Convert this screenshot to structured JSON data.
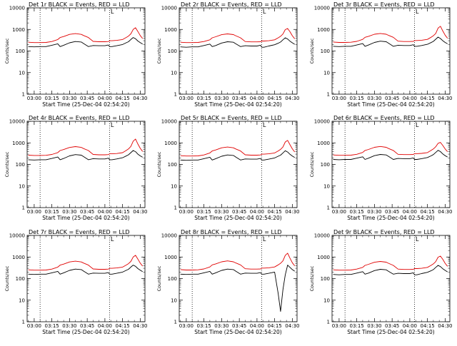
{
  "panels": [
    {
      "title": "Det 1r BLACK = Events, RED = LLD",
      "xlabel": "Start Time (25-Dec-04 02:54:20)",
      "ylabel": "Counts/sec"
    },
    {
      "title": "Det 2r BLACK = Events, RED = LLD",
      "xlabel": "Start Time (25-Dec-04 02:54:20)",
      "ylabel": "Counts/sec"
    },
    {
      "title": "Det 3r BLACK = Events, RED = LLD",
      "xlabel": "Start Time (25-Dec-04 02:54:20)",
      "ylabel": "Counts/sec"
    },
    {
      "title": "Det 4r BLACK = Events, RED = LLD",
      "xlabel": "Start Time (25-Dec-04 02:54:20)",
      "ylabel": "Counts/sec"
    },
    {
      "title": "Det 5r BLACK = Events, RED = LLD",
      "xlabel": "Start Time (25-Dec-04 02:54:20)",
      "ylabel": "Counts/sec"
    },
    {
      "title": "Det 6r BLACK = Events, RED = LLD",
      "xlabel": "Start Time (25-Dec-04 02:54:20)",
      "ylabel": "Counts/sec"
    },
    {
      "title": "Det 7r BLACK = Events, RED = LLD",
      "xlabel": "Start Time (25-Dec-04 02:54:20)",
      "ylabel": "Counts/sec"
    },
    {
      "title": "Det 8r BLACK = Events, RED = LLD",
      "xlabel": "Start Time (25-Dec-04 02:54:20)",
      "ylabel": "Counts/sec"
    },
    {
      "title": "Det 9r BLACK = Events, RED = LLD",
      "xlabel": "Start Time (25-Dec-04 02:54:20)",
      "ylabel": "Counts/sec"
    }
  ],
  "chart_data": {
    "type": "line",
    "layout": "3x3 grid",
    "x_tick_labels": [
      "03:00",
      "03:15",
      "03:30",
      "03:45",
      "04:00",
      "04:15",
      "04:30"
    ],
    "x_tick_minutes": [
      0,
      15,
      30,
      45,
      60,
      75,
      90
    ],
    "xlim_minutes": [
      -6,
      94
    ],
    "y_scale": "log",
    "ylim": [
      1,
      10000
    ],
    "y_tick_labels": [
      "1",
      "10",
      "100",
      "1000",
      "10000"
    ],
    "y_tick_values": [
      1,
      10,
      100,
      1000,
      10000
    ],
    "dotted_vertical_markers_minutes": [
      5,
      64
    ],
    "marker_label": "L",
    "marker_label_minute": 64,
    "colors": {
      "events": "#000000",
      "lld": "#e00000"
    },
    "series_order": [
      "events",
      "lld"
    ],
    "x_minutes": [
      -5,
      0,
      5,
      10,
      15,
      20,
      22,
      25,
      30,
      35,
      40,
      42,
      46,
      50,
      55,
      60,
      63,
      64,
      66,
      70,
      75,
      78,
      80,
      82,
      84,
      86,
      88,
      90,
      92
    ],
    "panel_series": [
      {
        "events": [
          160,
          155,
          160,
          160,
          185,
          215,
          160,
          185,
          240,
          275,
          260,
          220,
          160,
          180,
          175,
          175,
          190,
          160,
          160,
          175,
          200,
          240,
          270,
          340,
          420,
          370,
          290,
          245,
          210
        ],
        "lld": [
          255,
          245,
          245,
          250,
          275,
          340,
          420,
          470,
          590,
          640,
          590,
          520,
          420,
          280,
          270,
          270,
          275,
          300,
          300,
          310,
          340,
          420,
          490,
          620,
          1000,
          1200,
          800,
          520,
          380
        ]
      },
      {
        "events": [
          155,
          150,
          155,
          155,
          180,
          210,
          160,
          180,
          235,
          270,
          255,
          215,
          160,
          175,
          170,
          170,
          185,
          150,
          150,
          170,
          195,
          230,
          260,
          330,
          410,
          360,
          285,
          240,
          205
        ],
        "lld": [
          255,
          245,
          245,
          250,
          275,
          330,
          410,
          460,
          570,
          620,
          575,
          510,
          410,
          275,
          265,
          265,
          270,
          290,
          290,
          300,
          330,
          410,
          480,
          610,
          980,
          1100,
          780,
          510,
          370
        ]
      },
      {
        "events": [
          165,
          160,
          165,
          165,
          190,
          220,
          165,
          190,
          250,
          285,
          270,
          230,
          165,
          185,
          180,
          180,
          195,
          165,
          165,
          180,
          205,
          245,
          280,
          350,
          440,
          380,
          300,
          250,
          215
        ],
        "lld": [
          260,
          250,
          250,
          255,
          280,
          345,
          430,
          480,
          600,
          650,
          600,
          530,
          430,
          285,
          275,
          275,
          280,
          305,
          305,
          315,
          345,
          430,
          510,
          650,
          1150,
          1400,
          850,
          540,
          390
        ]
      },
      {
        "events": [
          165,
          160,
          165,
          165,
          190,
          220,
          165,
          190,
          250,
          285,
          270,
          230,
          165,
          185,
          180,
          180,
          195,
          165,
          165,
          180,
          205,
          245,
          280,
          350,
          440,
          390,
          300,
          250,
          215
        ],
        "lld": [
          270,
          260,
          260,
          265,
          290,
          355,
          440,
          490,
          610,
          670,
          615,
          540,
          440,
          290,
          280,
          280,
          285,
          310,
          310,
          320,
          350,
          440,
          520,
          680,
          1200,
          1500,
          880,
          560,
          400
        ]
      },
      {
        "events": [
          160,
          155,
          160,
          160,
          185,
          215,
          160,
          185,
          240,
          275,
          260,
          220,
          160,
          180,
          175,
          175,
          190,
          160,
          160,
          175,
          200,
          240,
          270,
          340,
          430,
          375,
          295,
          245,
          210
        ],
        "lld": [
          255,
          245,
          245,
          250,
          275,
          340,
          420,
          470,
          590,
          640,
          590,
          520,
          420,
          280,
          270,
          270,
          275,
          300,
          300,
          310,
          340,
          420,
          500,
          640,
          1100,
          1300,
          820,
          530,
          380
        ]
      },
      {
        "events": [
          170,
          165,
          170,
          170,
          195,
          225,
          170,
          195,
          255,
          290,
          275,
          235,
          170,
          190,
          185,
          185,
          200,
          170,
          170,
          185,
          210,
          250,
          285,
          360,
          450,
          395,
          305,
          255,
          220
        ],
        "lld": [
          275,
          265,
          265,
          270,
          295,
          360,
          445,
          495,
          620,
          680,
          620,
          545,
          445,
          295,
          285,
          285,
          290,
          315,
          315,
          325,
          355,
          445,
          520,
          660,
          950,
          1050,
          760,
          520,
          390
        ]
      },
      {
        "events": [
          160,
          155,
          160,
          160,
          185,
          215,
          160,
          185,
          240,
          275,
          260,
          220,
          160,
          180,
          175,
          175,
          190,
          160,
          160,
          175,
          200,
          240,
          270,
          340,
          420,
          370,
          290,
          245,
          210
        ],
        "lld": [
          255,
          245,
          245,
          250,
          275,
          340,
          420,
          470,
          590,
          640,
          590,
          520,
          420,
          280,
          270,
          270,
          275,
          300,
          300,
          310,
          340,
          420,
          490,
          620,
          1000,
          1200,
          800,
          520,
          380
        ]
      },
      {
        "events": [
          160,
          155,
          160,
          160,
          185,
          215,
          160,
          185,
          240,
          275,
          260,
          220,
          160,
          180,
          175,
          175,
          190,
          160,
          160,
          175,
          200,
          20,
          3,
          30,
          150,
          420,
          330,
          260,
          220
        ],
        "lld": [
          260,
          250,
          250,
          255,
          280,
          345,
          430,
          480,
          600,
          660,
          600,
          530,
          430,
          285,
          275,
          275,
          280,
          305,
          305,
          315,
          345,
          430,
          510,
          660,
          1200,
          1500,
          880,
          540,
          390
        ]
      },
      {
        "events": [
          155,
          150,
          155,
          155,
          180,
          210,
          160,
          180,
          235,
          270,
          255,
          215,
          160,
          175,
          170,
          170,
          185,
          150,
          150,
          170,
          195,
          230,
          260,
          330,
          410,
          360,
          285,
          240,
          205
        ],
        "lld": [
          255,
          245,
          245,
          250,
          275,
          330,
          410,
          460,
          570,
          620,
          575,
          510,
          410,
          275,
          265,
          265,
          270,
          290,
          290,
          300,
          330,
          410,
          480,
          610,
          980,
          1100,
          780,
          510,
          370
        ]
      }
    ]
  }
}
